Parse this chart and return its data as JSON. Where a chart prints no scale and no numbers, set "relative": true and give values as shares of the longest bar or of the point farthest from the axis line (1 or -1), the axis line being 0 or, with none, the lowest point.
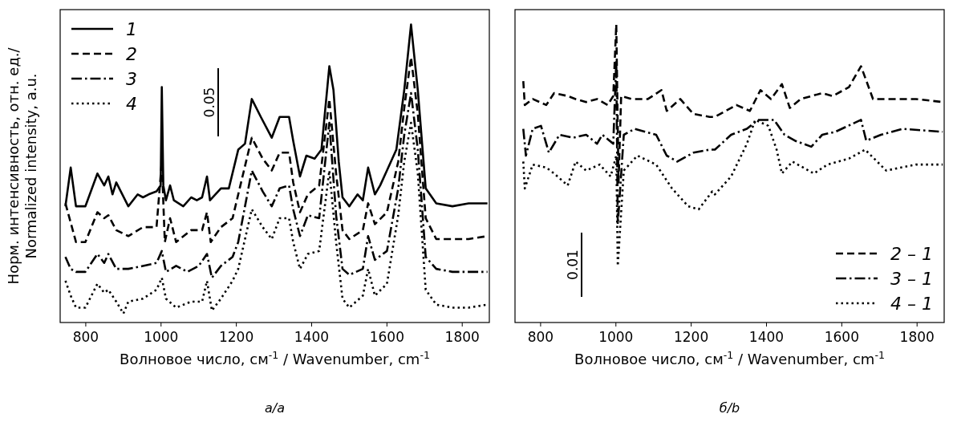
{
  "chart_data": [
    {
      "type": "line",
      "title": "а/a",
      "xlabel": "Волновое число, см$^{-1}$ / Wavenumber, cm$^{-1}$",
      "ylabel": "Норм. интенсивность, отн. ед./\nNormalized intensity, a.u.",
      "relative": true,
      "xlim": [
        732,
        1872
      ],
      "xticks": [
        800,
        1000,
        1200,
        1400,
        1600,
        1800
      ],
      "tick_labels": "x",
      "grid": false,
      "legend": "top left",
      "annotations": [
        "0.05"
      ],
      "series": [
        {
          "name": "1",
          "color": "#000000",
          "line_style": "solid",
          "x": [
            746,
            760,
            774,
            799,
            831,
            849,
            860,
            871,
            881,
            913,
            938,
            952,
            967,
            988,
            999,
            1002,
            1006,
            1013,
            1024,
            1034,
            1059,
            1080,
            1095,
            1109,
            1122,
            1130,
            1159,
            1180,
            1205,
            1223,
            1241,
            1265,
            1294,
            1315,
            1340,
            1351,
            1369,
            1386,
            1408,
            1426,
            1447,
            1458,
            1472,
            1482,
            1500,
            1522,
            1536,
            1550,
            1568,
            1582,
            1600,
            1625,
            1646,
            1664,
            1682,
            1703,
            1731,
            1774,
            1817,
            1867
          ],
          "values": [
            0.39,
            0.52,
            0.39,
            0.39,
            0.5,
            0.46,
            0.49,
            0.43,
            0.47,
            0.39,
            0.43,
            0.42,
            0.43,
            0.44,
            0.46,
            0.79,
            0.46,
            0.41,
            0.46,
            0.41,
            0.39,
            0.42,
            0.41,
            0.42,
            0.49,
            0.41,
            0.45,
            0.45,
            0.58,
            0.6,
            0.75,
            0.69,
            0.62,
            0.69,
            0.69,
            0.61,
            0.49,
            0.56,
            0.55,
            0.58,
            0.86,
            0.78,
            0.54,
            0.42,
            0.39,
            0.43,
            0.41,
            0.52,
            0.43,
            0.46,
            0.51,
            0.58,
            0.78,
            1.0,
            0.78,
            0.45,
            0.4,
            0.39,
            0.4,
            0.4
          ]
        },
        {
          "name": "2",
          "color": "#000000",
          "line_style": "dashed",
          "x": [
            746,
            774,
            799,
            831,
            849,
            860,
            881,
            913,
            952,
            988,
            1002,
            1010,
            1024,
            1040,
            1080,
            1109,
            1122,
            1132,
            1159,
            1190,
            1205,
            1241,
            1270,
            1294,
            1315,
            1340,
            1351,
            1369,
            1390,
            1420,
            1447,
            1465,
            1482,
            1500,
            1536,
            1550,
            1568,
            1600,
            1630,
            1646,
            1664,
            1682,
            1703,
            1731,
            1774,
            1817,
            1867
          ],
          "values": [
            0.4,
            0.27,
            0.27,
            0.37,
            0.35,
            0.36,
            0.31,
            0.29,
            0.32,
            0.32,
            0.54,
            0.27,
            0.35,
            0.27,
            0.31,
            0.31,
            0.37,
            0.27,
            0.32,
            0.35,
            0.43,
            0.62,
            0.55,
            0.51,
            0.57,
            0.57,
            0.47,
            0.37,
            0.43,
            0.46,
            0.75,
            0.5,
            0.31,
            0.28,
            0.31,
            0.4,
            0.33,
            0.37,
            0.54,
            0.72,
            0.89,
            0.7,
            0.35,
            0.28,
            0.28,
            0.28,
            0.29
          ]
        },
        {
          "name": "3",
          "color": "#000000",
          "line_style": "dashdot",
          "x": [
            746,
            760,
            774,
            799,
            831,
            849,
            860,
            881,
            913,
            952,
            988,
            1002,
            1013,
            1040,
            1070,
            1100,
            1122,
            1135,
            1159,
            1190,
            1205,
            1241,
            1270,
            1294,
            1315,
            1340,
            1351,
            1369,
            1390,
            1420,
            1447,
            1465,
            1482,
            1500,
            1536,
            1550,
            1568,
            1600,
            1630,
            1646,
            1664,
            1682,
            1703,
            1731,
            1774,
            1817,
            1867
          ],
          "values": [
            0.22,
            0.18,
            0.17,
            0.17,
            0.23,
            0.2,
            0.23,
            0.18,
            0.18,
            0.19,
            0.2,
            0.24,
            0.17,
            0.19,
            0.17,
            0.19,
            0.23,
            0.15,
            0.19,
            0.22,
            0.27,
            0.51,
            0.44,
            0.39,
            0.45,
            0.46,
            0.38,
            0.29,
            0.36,
            0.35,
            0.67,
            0.36,
            0.18,
            0.16,
            0.18,
            0.29,
            0.21,
            0.24,
            0.45,
            0.63,
            0.77,
            0.58,
            0.22,
            0.18,
            0.17,
            0.17,
            0.17
          ]
        },
        {
          "name": "4",
          "color": "#000000",
          "line_style": "dotted",
          "x": [
            746,
            760,
            774,
            799,
            831,
            849,
            860,
            881,
            900,
            913,
            952,
            988,
            1002,
            1013,
            1040,
            1080,
            1109,
            1122,
            1135,
            1159,
            1190,
            1205,
            1241,
            1270,
            1294,
            1315,
            1340,
            1351,
            1369,
            1390,
            1420,
            1447,
            1465,
            1482,
            1500,
            1536,
            1550,
            1568,
            1600,
            1630,
            1646,
            1664,
            1682,
            1703,
            1731,
            1774,
            1817,
            1867
          ],
          "values": [
            0.14,
            0.09,
            0.05,
            0.05,
            0.13,
            0.1,
            0.11,
            0.07,
            0.03,
            0.07,
            0.08,
            0.11,
            0.15,
            0.08,
            0.05,
            0.07,
            0.07,
            0.14,
            0.04,
            0.08,
            0.14,
            0.18,
            0.38,
            0.32,
            0.28,
            0.35,
            0.35,
            0.27,
            0.18,
            0.23,
            0.24,
            0.51,
            0.27,
            0.08,
            0.05,
            0.09,
            0.18,
            0.09,
            0.13,
            0.36,
            0.54,
            0.67,
            0.5,
            0.11,
            0.06,
            0.05,
            0.05,
            0.06
          ]
        }
      ]
    },
    {
      "type": "line",
      "title": "б/b",
      "xlabel": "Волновое число, см$^{-1}$ / Wavenumber, cm$^{-1}$",
      "relative": true,
      "xlim": [
        732,
        1872
      ],
      "xticks": [
        800,
        1000,
        1200,
        1400,
        1600,
        1800
      ],
      "tick_labels": "x",
      "grid": false,
      "legend": "bottom right",
      "annotations": [
        "0.01"
      ],
      "series": [
        {
          "name": "2 – 1",
          "color": "#000000",
          "line_style": "dashed",
          "x": [
            754,
            758,
            779,
            815,
            836,
            872,
            893,
            921,
            950,
            978,
            993,
            1001,
            1007,
            1014,
            1042,
            1085,
            1121,
            1135,
            1171,
            1206,
            1249,
            1263,
            1320,
            1356,
            1384,
            1412,
            1441,
            1462,
            1491,
            1548,
            1576,
            1619,
            1651,
            1683,
            1726,
            1797,
            1868
          ],
          "values": [
            0.81,
            0.73,
            0.75,
            0.73,
            0.77,
            0.76,
            0.75,
            0.74,
            0.75,
            0.73,
            0.76,
            1.0,
            0.47,
            0.76,
            0.75,
            0.75,
            0.78,
            0.71,
            0.75,
            0.7,
            0.69,
            0.69,
            0.73,
            0.71,
            0.78,
            0.75,
            0.8,
            0.72,
            0.75,
            0.77,
            0.76,
            0.79,
            0.86,
            0.75,
            0.75,
            0.75,
            0.74
          ]
        },
        {
          "name": "3 – 1",
          "color": "#000000",
          "line_style": "dashdot",
          "x": [
            754,
            761,
            779,
            801,
            822,
            850,
            886,
            921,
            950,
            964,
            993,
            1001,
            1005,
            1021,
            1050,
            1107,
            1135,
            1163,
            1206,
            1249,
            1263,
            1306,
            1348,
            1377,
            1420,
            1448,
            1476,
            1519,
            1548,
            1583,
            1651,
            1665,
            1704,
            1761,
            1868
          ],
          "values": [
            0.65,
            0.56,
            0.65,
            0.66,
            0.57,
            0.63,
            0.62,
            0.63,
            0.6,
            0.63,
            0.6,
            0.88,
            0.33,
            0.63,
            0.65,
            0.63,
            0.56,
            0.54,
            0.57,
            0.58,
            0.58,
            0.63,
            0.65,
            0.68,
            0.68,
            0.63,
            0.61,
            0.59,
            0.63,
            0.64,
            0.68,
            0.61,
            0.63,
            0.65,
            0.64
          ]
        },
        {
          "name": "4 – 1",
          "color": "#000000",
          "line_style": "dotted",
          "x": [
            754,
            758,
            779,
            815,
            836,
            872,
            893,
            921,
            957,
            986,
            1001,
            1005,
            1021,
            1057,
            1107,
            1149,
            1192,
            1220,
            1256,
            1263,
            1306,
            1348,
            1370,
            1405,
            1427,
            1441,
            1469,
            1526,
            1562,
            1619,
            1662,
            1718,
            1797,
            1868
          ],
          "values": [
            0.54,
            0.45,
            0.53,
            0.52,
            0.5,
            0.46,
            0.54,
            0.51,
            0.53,
            0.49,
            0.56,
            0.19,
            0.51,
            0.56,
            0.53,
            0.45,
            0.39,
            0.38,
            0.44,
            0.43,
            0.49,
            0.6,
            0.68,
            0.66,
            0.58,
            0.5,
            0.54,
            0.5,
            0.53,
            0.55,
            0.58,
            0.51,
            0.53,
            0.53
          ]
        }
      ]
    }
  ]
}
